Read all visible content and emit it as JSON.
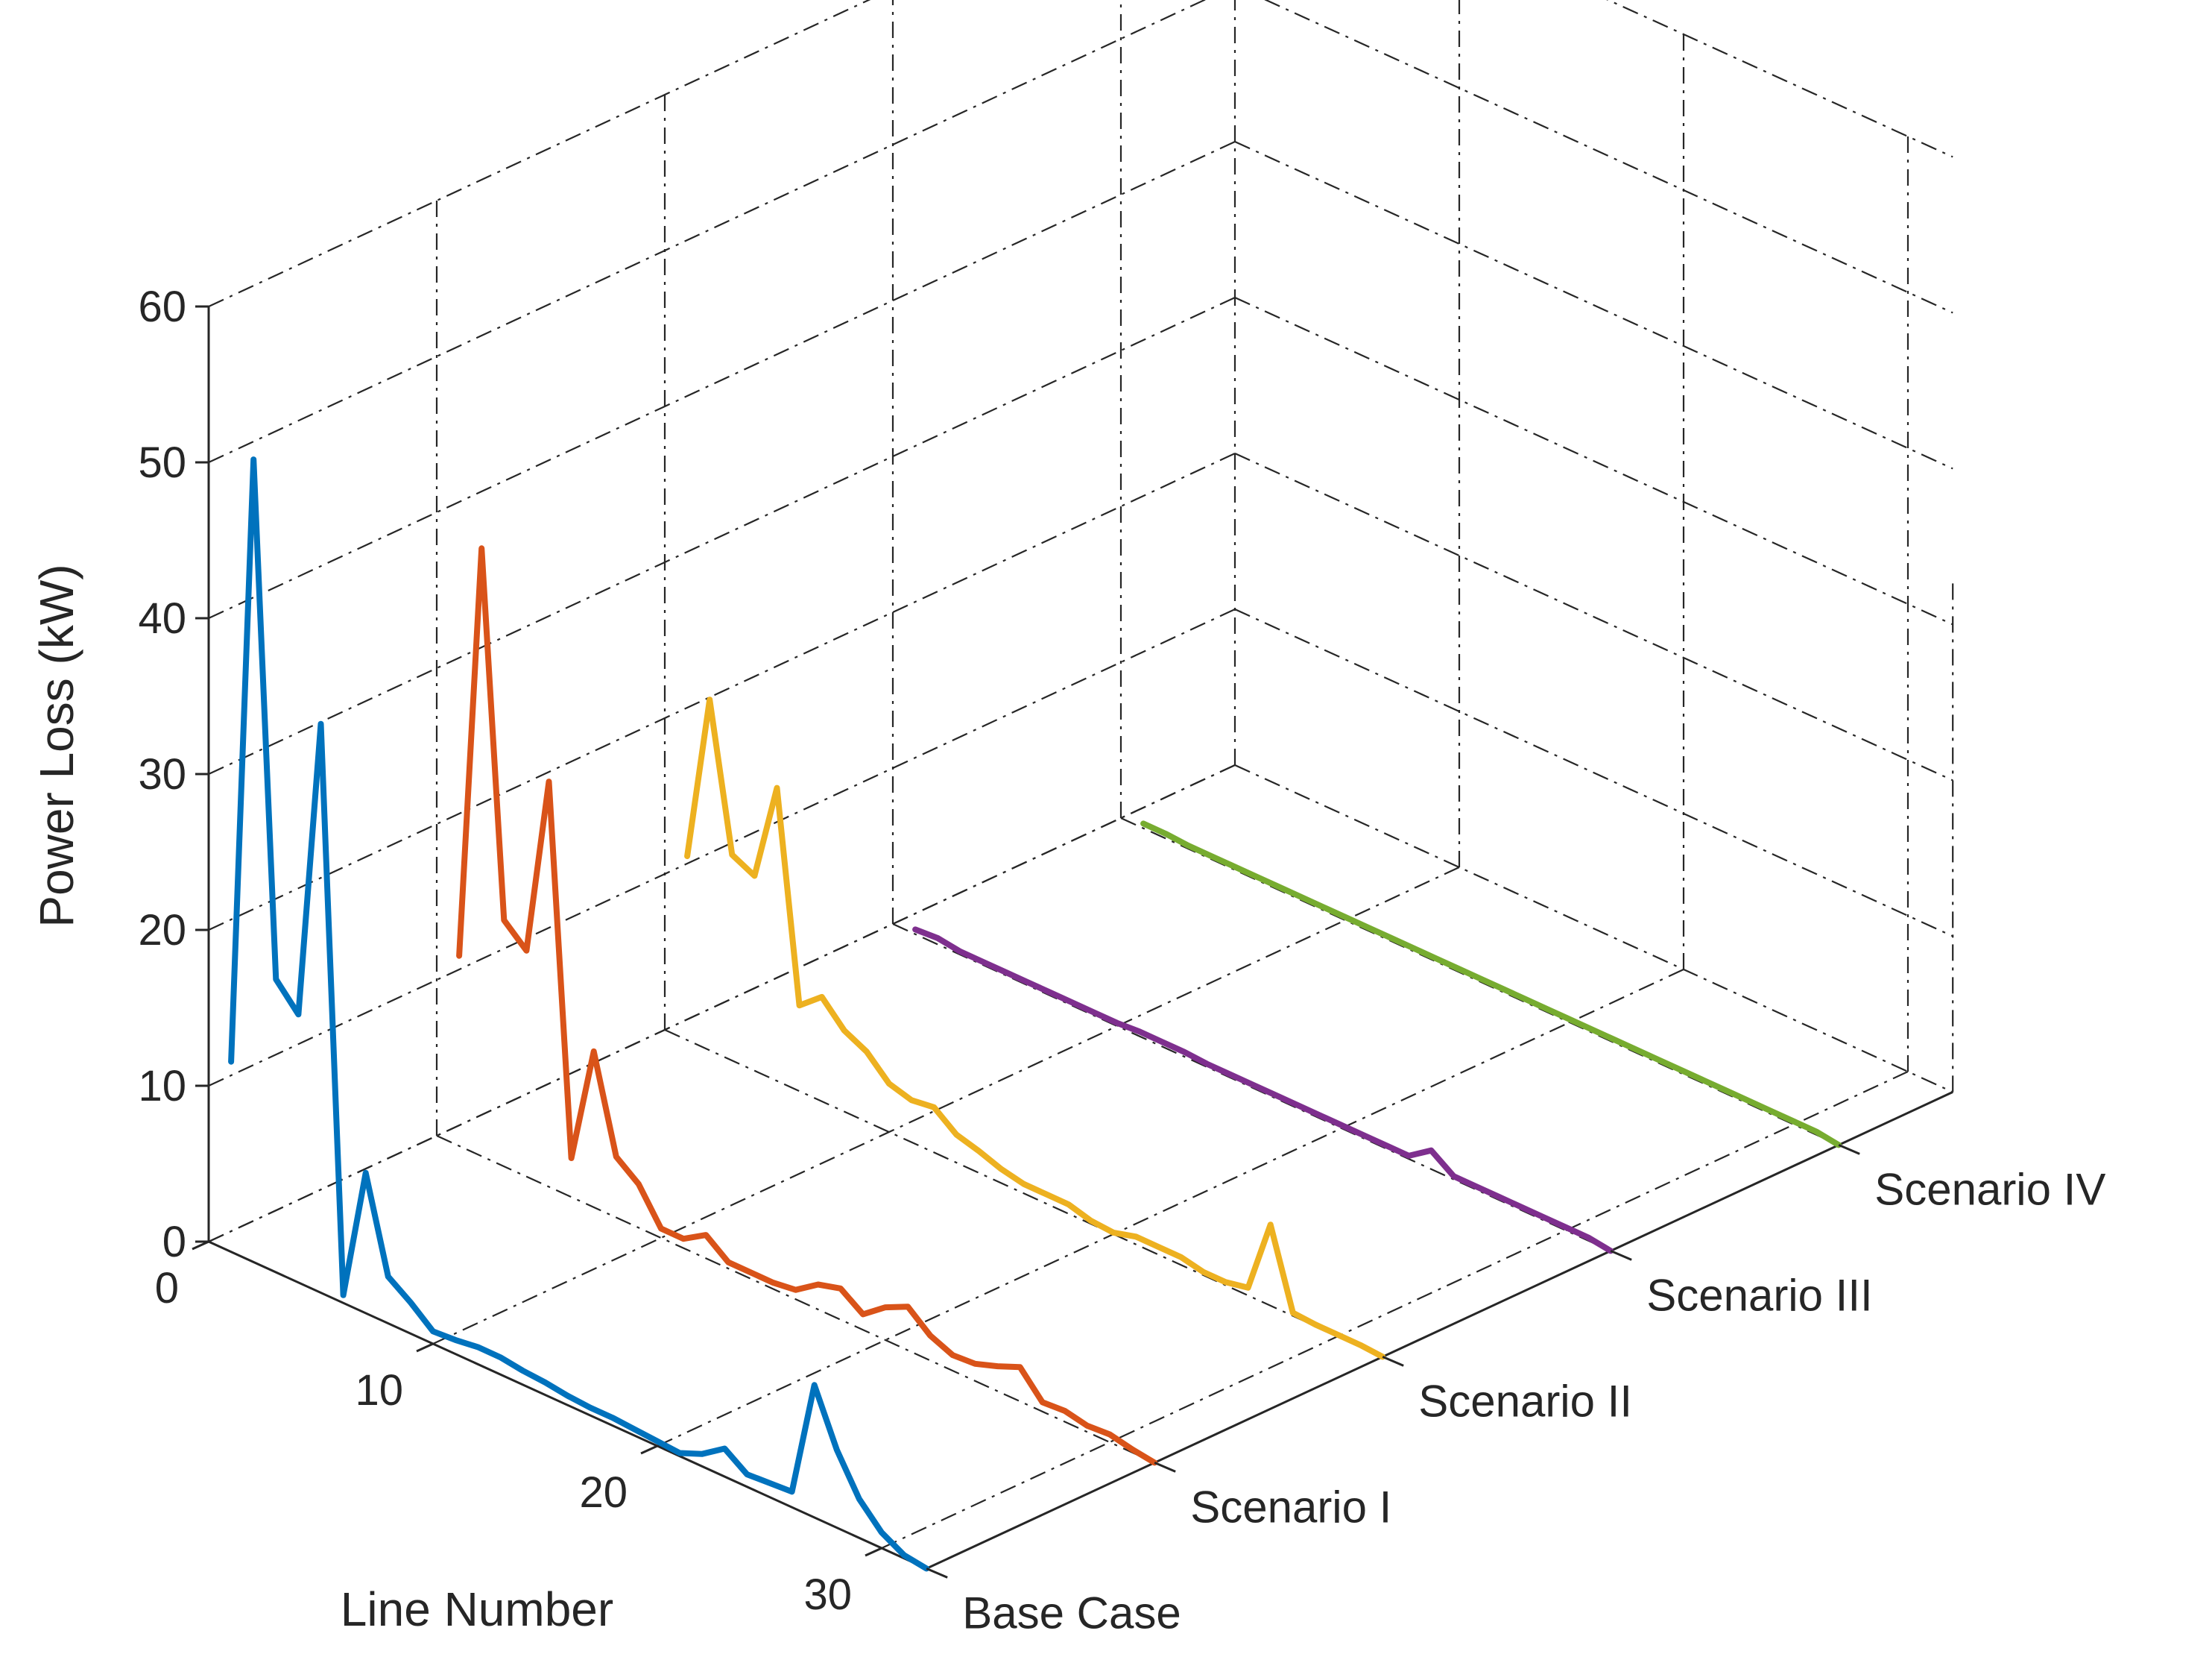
{
  "chart_data": {
    "type": "line",
    "style": "3d-ribbon",
    "title": "",
    "xlabel": "Line Number",
    "ylabel": "",
    "zlabel": "Power Loss (kW)",
    "x": [
      1,
      2,
      3,
      4,
      5,
      6,
      7,
      8,
      9,
      10,
      11,
      12,
      13,
      14,
      15,
      16,
      17,
      18,
      19,
      20,
      21,
      22,
      23,
      24,
      25,
      26,
      27,
      28,
      29,
      30,
      31,
      32
    ],
    "x_ticks": [
      "0",
      "10",
      "20",
      "30"
    ],
    "x_tick_values": [
      0,
      10,
      20,
      30
    ],
    "xlim": [
      0,
      32
    ],
    "z_ticks": [
      "0",
      "10",
      "20",
      "30",
      "40",
      "50",
      "60"
    ],
    "z_tick_values": [
      0,
      10,
      20,
      30,
      40,
      50,
      60
    ],
    "zlim": [
      0,
      60
    ],
    "categories": [
      "Base Case",
      "Scenario I",
      "Scenario II",
      "Scenario III",
      "Scenario IV"
    ],
    "grid": true,
    "series": [
      {
        "name": "Base Case",
        "color": "#0072BD",
        "values": [
          12.2,
          51.5,
          18.8,
          17.2,
          36.5,
          0.5,
          9.0,
          3.0,
          2.0,
          0.8,
          0.9,
          1.1,
          1.1,
          0.9,
          0.8,
          0.6,
          0.5,
          0.5,
          0.4,
          0.3,
          0.2,
          0.8,
          1.8,
          0.8,
          0.9,
          1.0,
          8.5,
          5.0,
          2.5,
          1.0,
          0.2,
          0.0
        ]
      },
      {
        "name": "Scenario I",
        "color": "#D95319",
        "values": [
          12.2,
          39.0,
          15.8,
          14.5,
          26.0,
          2.5,
          10.0,
          3.9,
          2.8,
          0.6,
          0.6,
          1.5,
          0.4,
          0.4,
          0.4,
          0.6,
          1.6,
          2.0,
          1.0,
          2.1,
          2.8,
          1.6,
          1.0,
          1.1,
          1.6,
          2.2,
          0.6,
          0.7,
          0.4,
          0.5,
          0.2,
          0.0
        ]
      },
      {
        "name": "Scenario II",
        "color": "#EDB120",
        "values": [
          11.8,
          22.5,
          13.2,
          12.5,
          18.8,
          5.5,
          6.7,
          5.2,
          4.5,
          3.1,
          2.7,
          2.9,
          1.8,
          1.4,
          0.9,
          0.6,
          0.6,
          0.6,
          0.2,
          0.1,
          0.5,
          0.5,
          0.5,
          0.2,
          0.2,
          0.5,
          5.2,
          0.2,
          0.1,
          0.1,
          0.1,
          0.0
        ]
      },
      {
        "name": "Scenario III",
        "color": "#7E2F8E",
        "values": [
          0.3,
          0.4,
          0.2,
          0.2,
          0.2,
          0.2,
          0.2,
          0.2,
          0.2,
          0.2,
          0.3,
          0.3,
          0.3,
          0.2,
          0.2,
          0.2,
          0.2,
          0.2,
          0.2,
          0.2,
          0.2,
          0.2,
          0.2,
          1.2,
          0.2,
          0.2,
          0.2,
          0.2,
          0.2,
          0.2,
          0.2,
          0.0
        ]
      },
      {
        "name": "Scenario IV",
        "color": "#77AC30",
        "values": [
          0.3,
          0.3,
          0.2,
          0.2,
          0.2,
          0.2,
          0.2,
          0.2,
          0.2,
          0.2,
          0.2,
          0.2,
          0.2,
          0.2,
          0.2,
          0.2,
          0.2,
          0.2,
          0.2,
          0.2,
          0.2,
          0.2,
          0.2,
          0.2,
          0.2,
          0.2,
          0.2,
          0.2,
          0.2,
          0.2,
          0.2,
          0.0
        ]
      }
    ]
  }
}
